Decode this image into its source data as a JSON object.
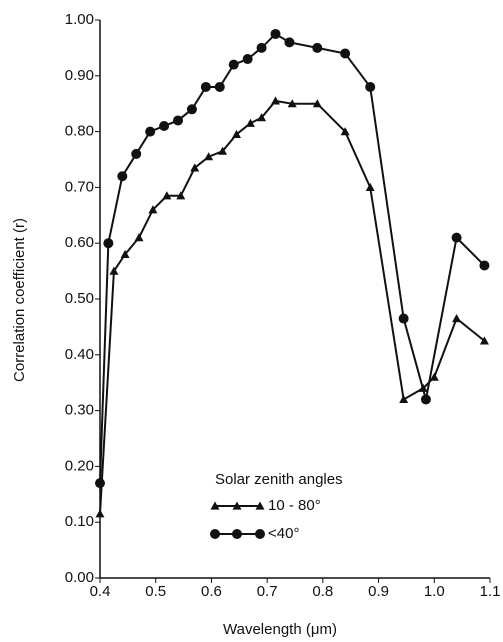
{
  "chart_data": {
    "type": "line",
    "x_label": "Wavelength (μm)",
    "y_label": "Correlation coefficient (r)",
    "legend_title": "Solar zenith angles",
    "xlim": [
      0.4,
      1.1
    ],
    "xticks": [
      0.4,
      0.5,
      0.6,
      0.7,
      0.8,
      0.9,
      {
        "value": 1.0,
        "label": "1.0"
      },
      1.1
    ],
    "ylim": [
      0,
      1
    ],
    "yticks": [
      {
        "value": 0,
        "label": "0.00"
      },
      {
        "value": 0.1,
        "label": "0.10"
      },
      {
        "value": 0.2,
        "label": "0.20"
      },
      {
        "value": 0.3,
        "label": "0.30"
      },
      {
        "value": 0.4,
        "label": "0.40"
      },
      {
        "value": 0.5,
        "label": "0.50"
      },
      {
        "value": 0.6,
        "label": "0.60"
      },
      {
        "value": 0.7,
        "label": "0.70"
      },
      {
        "value": 0.8,
        "label": "0.80"
      },
      {
        "value": 0.9,
        "label": "0.90"
      },
      {
        "value": 1,
        "label": "1.00"
      }
    ],
    "series": [
      {
        "name": "10 - 80°",
        "color": "#111111",
        "marker": "triangle",
        "x": [
          0.4,
          0.425,
          0.445,
          0.47,
          0.495,
          0.52,
          0.545,
          0.57,
          0.595,
          0.62,
          0.645,
          0.67,
          0.69,
          0.715,
          0.745,
          0.79,
          0.84,
          0.885,
          0.945,
          0.98,
          1.0,
          1.04,
          1.09
        ],
        "values": [
          0.115,
          0.55,
          0.58,
          0.61,
          0.66,
          0.685,
          0.685,
          0.735,
          0.755,
          0.765,
          0.795,
          0.815,
          0.825,
          0.855,
          0.85,
          0.85,
          0.8,
          0.7,
          0.32,
          0.34,
          0.36,
          0.465,
          0.425
        ]
      },
      {
        "name": "<40°",
        "color": "#111111",
        "marker": "circle",
        "x": [
          0.4,
          0.415,
          0.44,
          0.465,
          0.49,
          0.515,
          0.54,
          0.565,
          0.59,
          0.615,
          0.64,
          0.665,
          0.69,
          0.715,
          0.74,
          0.79,
          0.84,
          0.885,
          0.945,
          0.985,
          1.04,
          1.09
        ],
        "values": [
          0.17,
          0.6,
          0.72,
          0.76,
          0.8,
          0.81,
          0.82,
          0.84,
          0.88,
          0.88,
          0.92,
          0.93,
          0.95,
          0.975,
          0.96,
          0.95,
          0.94,
          0.88,
          0.465,
          0.32,
          0.61,
          0.56
        ]
      }
    ]
  }
}
